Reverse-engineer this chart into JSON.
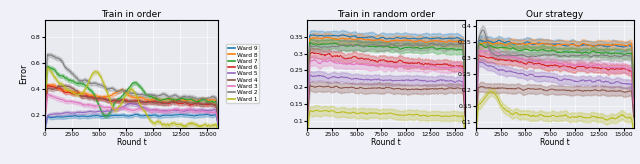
{
  "titles": [
    "Train in order",
    "Train in random order",
    "Our strategy"
  ],
  "xlabel": "Round t",
  "ylabel": "Error",
  "xlim": [
    0,
    16000
  ],
  "ylim1": [
    0.1,
    0.93
  ],
  "ylim2": [
    0.08,
    0.4
  ],
  "ylim3": [
    0.08,
    0.42
  ],
  "yticks1": [
    0.2,
    0.4,
    0.6,
    0.8
  ],
  "yticks2": [
    0.1,
    0.15,
    0.2,
    0.25,
    0.3,
    0.35
  ],
  "yticks3": [
    0.1,
    0.15,
    0.2,
    0.25,
    0.3,
    0.35,
    0.4
  ],
  "xticks": [
    0,
    2500,
    5000,
    7500,
    10000,
    12500,
    15000
  ],
  "ward_colors": {
    "Ward 9": "#1f77b4",
    "Ward 8": "#ff7f0e",
    "Ward 7": "#2ca02c",
    "Ward 6": "#d62728",
    "Ward 5": "#9467bd",
    "Ward 4": "#8c564b",
    "Ward 3": "#e377c2",
    "Ward 2": "#7f7f7f",
    "Ward 1": "#bcbd22"
  },
  "ward_names": [
    "Ward 9",
    "Ward 8",
    "Ward 7",
    "Ward 6",
    "Ward 5",
    "Ward 4",
    "Ward 3",
    "Ward 2",
    "Ward 1"
  ],
  "n_rounds": 16000,
  "seed": 42,
  "background_color": "#e8eaf0",
  "fig_facecolor": "#f0f0f8"
}
